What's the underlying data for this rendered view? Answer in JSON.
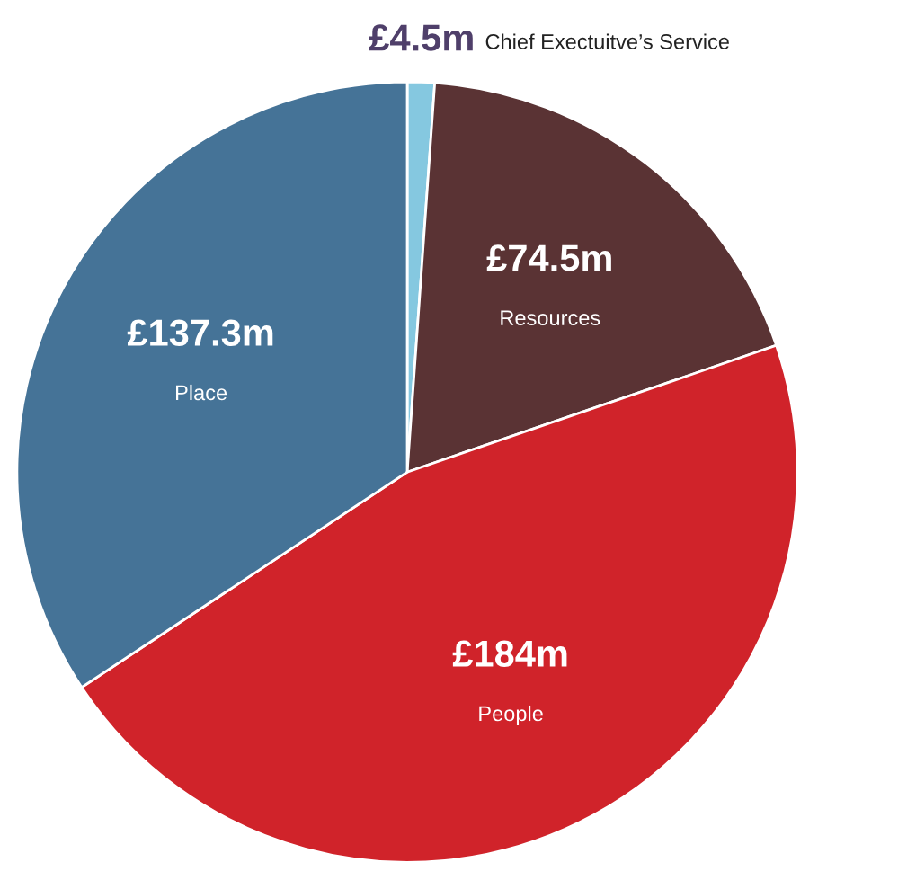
{
  "chart_data": {
    "type": "pie",
    "categories": [
      "Chief Exectuitve’s Service",
      "Resources",
      "People",
      "Place"
    ],
    "values": [
      4.5,
      74.5,
      184,
      137.3
    ],
    "value_labels": [
      "£4.5m",
      "£74.5m",
      "£184m",
      "£137.3m"
    ],
    "colors": [
      "#85c8e0",
      "#5a3334",
      "#d0232a",
      "#457397"
    ]
  }
}
